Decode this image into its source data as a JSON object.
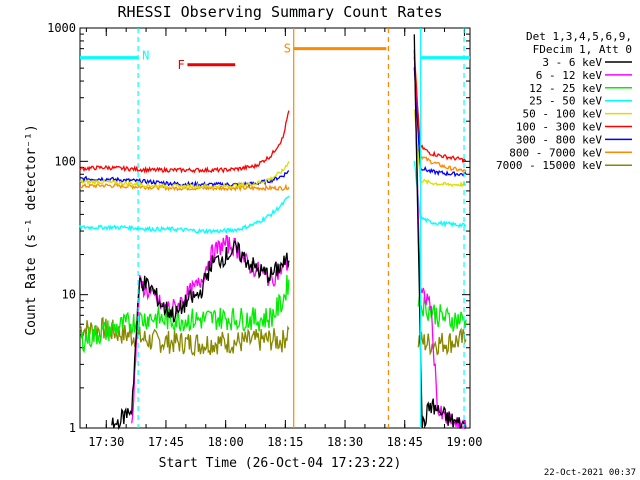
{
  "chart_data": {
    "type": "line",
    "title": "RHESSI Observing Summary Count Rates",
    "xlabel": "Start Time (26-Oct-04 17:23:22)",
    "ylabel": "Count Rate (s⁻¹ detector⁻¹)",
    "yscale": "log",
    "ylim": [
      1,
      1000
    ],
    "xlim_minutes": [
      0,
      98
    ],
    "x_ticks": [
      {
        "label": "17:30",
        "t": 6.6
      },
      {
        "label": "17:45",
        "t": 21.6
      },
      {
        "label": "18:00",
        "t": 36.6
      },
      {
        "label": "18:15",
        "t": 51.6
      },
      {
        "label": "18:30",
        "t": 66.6
      },
      {
        "label": "18:45",
        "t": 81.6
      },
      {
        "label": "19:00",
        "t": 96.6
      }
    ],
    "y_ticks": [
      "1",
      "10",
      "100",
      "1000"
    ],
    "legend_header": [
      "Det 1,3,4,5,6,9,",
      "FDecim 1, Att 0"
    ],
    "series": [
      {
        "name": "3 - 6 keV",
        "color": "#000000",
        "seg1": [
          [
            8,
            1
          ],
          [
            13,
            1.4
          ],
          [
            15,
            13
          ],
          [
            18,
            11
          ],
          [
            21,
            8
          ],
          [
            24,
            7
          ],
          [
            27,
            9
          ],
          [
            30,
            10
          ],
          [
            33,
            17
          ],
          [
            36,
            19
          ],
          [
            39,
            22
          ],
          [
            42,
            18
          ],
          [
            45,
            15
          ],
          [
            48,
            14
          ],
          [
            51,
            17
          ],
          [
            52.5,
            18
          ]
        ],
        "seg2": [
          [
            84,
            800
          ],
          [
            86,
            1
          ],
          [
            88,
            1.5
          ],
          [
            92,
            1.2
          ],
          [
            97,
            1
          ]
        ]
      },
      {
        "name": "6 - 12 keV",
        "color": "#ff00ff",
        "seg1": [
          [
            13,
            1
          ],
          [
            15,
            12
          ],
          [
            18,
            10
          ],
          [
            21,
            8
          ],
          [
            24,
            8
          ],
          [
            27,
            10
          ],
          [
            30,
            12
          ],
          [
            33,
            20
          ],
          [
            36,
            24
          ],
          [
            39,
            23
          ],
          [
            42,
            17
          ],
          [
            45,
            15
          ],
          [
            48,
            13
          ],
          [
            51,
            16
          ],
          [
            52.5,
            17
          ]
        ],
        "seg2": [
          [
            84,
            700
          ],
          [
            85.5,
            10
          ],
          [
            88,
            9
          ],
          [
            90,
            1.3
          ],
          [
            93,
            1.1
          ],
          [
            97,
            1
          ]
        ]
      },
      {
        "name": "12 - 25 keV",
        "color": "#00ee00",
        "seg1": [
          [
            0,
            4.5
          ],
          [
            4,
            5
          ],
          [
            8,
            5.5
          ],
          [
            12,
            6
          ],
          [
            15,
            6.5
          ],
          [
            18,
            6.8
          ],
          [
            21,
            6.5
          ],
          [
            24,
            6.5
          ],
          [
            27,
            6.5
          ],
          [
            30,
            6.5
          ],
          [
            33,
            6.6
          ],
          [
            36,
            6.7
          ],
          [
            39,
            6.6
          ],
          [
            42,
            6.6
          ],
          [
            45,
            6.5
          ],
          [
            48,
            6.8
          ],
          [
            51,
            9
          ],
          [
            52.5,
            13
          ]
        ],
        "seg2": [
          [
            85,
            9
          ],
          [
            87,
            8
          ],
          [
            90,
            7
          ],
          [
            93,
            6.5
          ],
          [
            97,
            6.5
          ]
        ]
      },
      {
        "name": "25 - 50 keV",
        "color": "#00ffff",
        "seg1": [
          [
            0,
            32
          ],
          [
            6,
            32
          ],
          [
            12,
            32
          ],
          [
            18,
            31
          ],
          [
            24,
            31
          ],
          [
            30,
            30
          ],
          [
            36,
            30
          ],
          [
            40,
            31
          ],
          [
            44,
            34
          ],
          [
            48,
            40
          ],
          [
            51,
            48
          ],
          [
            52.5,
            55
          ]
        ],
        "seg2": [
          [
            84,
            100
          ],
          [
            85.5,
            38
          ],
          [
            88,
            35
          ],
          [
            92,
            34
          ],
          [
            97,
            33
          ]
        ]
      },
      {
        "name": "50 - 100 keV",
        "color": "#dddd00",
        "seg1": [
          [
            0,
            70
          ],
          [
            6,
            70
          ],
          [
            12,
            68
          ],
          [
            18,
            66
          ],
          [
            24,
            65
          ],
          [
            30,
            65
          ],
          [
            36,
            65
          ],
          [
            40,
            66
          ],
          [
            44,
            68
          ],
          [
            48,
            74
          ],
          [
            51,
            85
          ],
          [
            52.5,
            100
          ]
        ],
        "seg2": [
          [
            84,
            250
          ],
          [
            85.5,
            72
          ],
          [
            88,
            69
          ],
          [
            92,
            67
          ],
          [
            97,
            67
          ]
        ]
      },
      {
        "name": "100 - 300 keV",
        "color": "#ff0000",
        "seg1": [
          [
            0,
            88
          ],
          [
            6,
            90
          ],
          [
            12,
            88
          ],
          [
            18,
            86
          ],
          [
            24,
            86
          ],
          [
            30,
            86
          ],
          [
            36,
            86
          ],
          [
            40,
            88
          ],
          [
            44,
            92
          ],
          [
            48,
            110
          ],
          [
            51,
            150
          ],
          [
            52.5,
            240
          ]
        ],
        "seg2": [
          [
            84,
            600
          ],
          [
            85.5,
            130
          ],
          [
            88,
            115
          ],
          [
            92,
            108
          ],
          [
            97,
            102
          ]
        ]
      },
      {
        "name": "300 - 800 keV",
        "color": "#0000ff",
        "seg1": [
          [
            0,
            74
          ],
          [
            6,
            74
          ],
          [
            12,
            72
          ],
          [
            18,
            70
          ],
          [
            24,
            68
          ],
          [
            30,
            67
          ],
          [
            36,
            67
          ],
          [
            40,
            67
          ],
          [
            44,
            68
          ],
          [
            48,
            72
          ],
          [
            51,
            78
          ],
          [
            52.5,
            85
          ]
        ],
        "seg2": [
          [
            84,
            500
          ],
          [
            85.5,
            90
          ],
          [
            88,
            84
          ],
          [
            92,
            81
          ],
          [
            97,
            80
          ]
        ]
      },
      {
        "name": "800 - 7000 keV",
        "color": "#ff8800",
        "seg1": [
          [
            0,
            65
          ],
          [
            6,
            66
          ],
          [
            12,
            65
          ],
          [
            18,
            64
          ],
          [
            24,
            63
          ],
          [
            30,
            63
          ],
          [
            36,
            63
          ],
          [
            40,
            63
          ],
          [
            44,
            63
          ],
          [
            48,
            63
          ],
          [
            51,
            63
          ],
          [
            52.5,
            64
          ]
        ],
        "seg2": [
          [
            84,
            700
          ],
          [
            85.5,
            110
          ],
          [
            88,
            100
          ],
          [
            92,
            90
          ],
          [
            97,
            84
          ]
        ]
      },
      {
        "name": "7000 - 15000 keV",
        "color": "#888800",
        "seg1": [
          [
            0,
            5.5
          ],
          [
            6,
            5.5
          ],
          [
            12,
            5
          ],
          [
            18,
            4.5
          ],
          [
            24,
            4.4
          ],
          [
            30,
            4.3
          ],
          [
            36,
            4.4
          ],
          [
            40,
            4.4
          ],
          [
            44,
            4.5
          ],
          [
            48,
            4.6
          ],
          [
            51,
            4.5
          ],
          [
            52.5,
            5.5
          ]
        ],
        "seg2": [
          [
            85,
            4.5
          ],
          [
            88,
            4.3
          ],
          [
            92,
            4.4
          ],
          [
            97,
            4.6
          ]
        ]
      }
    ],
    "bars": [
      {
        "label": "N",
        "color": "#00ffff",
        "segments": [
          [
            0,
            14.6
          ],
          [
            85.6,
            98
          ]
        ],
        "y": 600
      },
      {
        "label": "F",
        "color": "#ee0000",
        "segments": [
          [
            27,
            39
          ]
        ],
        "y": 530
      },
      {
        "label": "S",
        "color": "#ff8800",
        "segments": [
          [
            53.7,
            77
          ]
        ],
        "y": 700
      }
    ],
    "vlines": [
      {
        "color": "#00ffff",
        "t": 14.6,
        "style": "dashed"
      },
      {
        "color": "#ff8800",
        "t": 53.7,
        "style": "solid"
      },
      {
        "color": "#ff8800",
        "t": 77.5,
        "style": "dashed"
      },
      {
        "color": "#00ffff",
        "t": 85.6,
        "style": "solid"
      },
      {
        "color": "#00ffff",
        "t": 96.5,
        "style": "dashed"
      }
    ],
    "footer": "22-Oct-2021 00:37"
  }
}
